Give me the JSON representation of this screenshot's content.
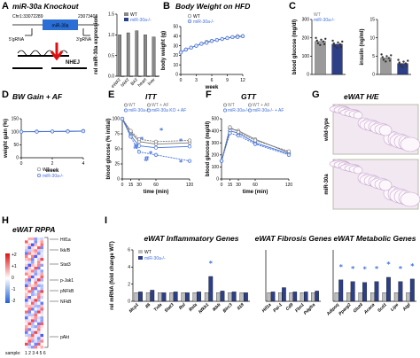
{
  "figure": {
    "panels": [
      "A",
      "B",
      "C",
      "D",
      "E",
      "F",
      "G",
      "H",
      "I"
    ],
    "colors": {
      "wt": "#888888",
      "ko": "#2a3f8c",
      "ko_line": "#3f6fe0",
      "star": "#3f6fe0",
      "red": "#e01010",
      "blue": "#2060d8"
    }
  },
  "panel_a": {
    "title": "miR-30a Knockout",
    "chr": "Chr1:33072289",
    "chr_end": "23073408",
    "gene": "miR-30a",
    "grna_left": "5'gRNA",
    "grna_right": "3'gRNA",
    "nhej": "NHEJ"
  },
  "panel_g": {
    "title": "eWAT H/E",
    "row1": "wild-type",
    "row2": "miR-30a",
    "row2_sup": "-/-"
  },
  "panel_h": {
    "title": "eWAT RPPA",
    "scale": [
      "+2",
      "+1",
      "0",
      "-1",
      "-2"
    ],
    "labels": [
      "Hif1a",
      "Ikk/B",
      "Stat3",
      "p-Jak1",
      "pNFkB",
      "NFkB",
      "pAkt"
    ],
    "sample_label": "sample:",
    "samples": "1 2 3 4 5 6"
  },
  "chart_data": [
    {
      "panel": "A-inset",
      "type": "bar",
      "ylabel": "rel miR-30a expression",
      "ylim": [
        0,
        1.5
      ],
      "yticks": [
        "0.0",
        "0.5",
        "1.0",
        "1.5"
      ],
      "categories": [
        "eWAT",
        "iWAT",
        "BAT",
        "heart",
        "liver"
      ],
      "series": [
        {
          "name": "WT",
          "values": [
            1.0,
            1.05,
            1.1,
            1.0,
            0.95
          ]
        },
        {
          "name": "miR-30a-/-",
          "values": [
            0,
            0,
            0,
            0,
            0
          ]
        }
      ]
    },
    {
      "panel": "B",
      "type": "line",
      "title": "Body Weight on HFD",
      "xlabel": "week",
      "ylabel": "body weight (g)",
      "xlim": [
        0,
        12
      ],
      "ylim": [
        0,
        50
      ],
      "xticks": [
        "0",
        "3",
        "6",
        "9",
        "12"
      ],
      "yticks": [
        "0",
        "10",
        "20",
        "30",
        "40",
        "50"
      ],
      "x": [
        0,
        1,
        2,
        3,
        4,
        5,
        6,
        7,
        8,
        9,
        10,
        11,
        12
      ],
      "series": [
        {
          "name": "WT",
          "values": [
            23,
            26,
            28,
            30,
            32,
            34,
            35,
            36,
            37,
            38,
            39,
            40,
            40
          ]
        },
        {
          "name": "miR-30a-/-",
          "values": [
            23,
            26,
            28,
            30,
            32,
            33,
            35,
            36,
            37,
            38,
            39,
            39,
            40
          ]
        }
      ]
    },
    {
      "panel": "C-left",
      "type": "bar",
      "ylabel": "blood glucose (mg/dl)",
      "ylim": [
        0,
        300
      ],
      "yticks": [
        "0",
        "100",
        "200",
        "300"
      ],
      "categories": [
        "WT",
        "miR-30a-/-"
      ],
      "values": [
        180,
        165
      ]
    },
    {
      "panel": "C-right",
      "type": "bar",
      "ylabel": "insulin (ng/ml)",
      "ylim": [
        0,
        15
      ],
      "yticks": [
        "0",
        "5",
        "10",
        "15"
      ],
      "categories": [
        "WT",
        "miR-30a-/-"
      ],
      "values": [
        4.5,
        3.0
      ]
    },
    {
      "panel": "D",
      "type": "scatter",
      "title": "BW Gain + AF",
      "xlabel": "week",
      "ylabel": "weight gain (%)",
      "xlim": [
        0,
        4
      ],
      "ylim": [
        0,
        150
      ],
      "xticks": [
        "0",
        "2",
        "4"
      ],
      "yticks": [
        "0",
        "50",
        "100",
        "150"
      ],
      "x": [
        0,
        1,
        2,
        3,
        4
      ],
      "series": [
        {
          "name": "WT",
          "values": [
            100,
            101,
            101,
            102,
            103
          ]
        },
        {
          "name": "miR-30a-/-",
          "values": [
            100,
            100,
            101,
            101,
            102
          ]
        }
      ]
    },
    {
      "panel": "E",
      "type": "line",
      "title": "ITT",
      "xlabel": "time (min)",
      "ylabel": "blood glucose (% initial)",
      "xlim": [
        0,
        120
      ],
      "ylim": [
        0,
        100
      ],
      "xticks": [
        "0",
        "15",
        "30",
        "60",
        "120"
      ],
      "yticks": [
        "0",
        "25",
        "50",
        "75",
        "100"
      ],
      "x": [
        0,
        15,
        30,
        60,
        120
      ],
      "series": [
        {
          "name": "WT",
          "values": [
            100,
            78,
            62,
            58,
            60
          ]
        },
        {
          "name": "miR-30a-/-",
          "values": [
            100,
            72,
            55,
            52,
            54
          ]
        },
        {
          "name": "WT + AF",
          "values": [
            100,
            80,
            66,
            62,
            64
          ]
        },
        {
          "name": "miR-30a KO + AF",
          "values": [
            100,
            70,
            45,
            40,
            30
          ]
        }
      ]
    },
    {
      "panel": "F",
      "type": "line",
      "title": "GTT",
      "xlabel": "time (min)",
      "ylabel": "blood glucose (mg/dl)",
      "xlim": [
        0,
        120
      ],
      "ylim": [
        0,
        500
      ],
      "xticks": [
        "0",
        "15",
        "30",
        "60",
        "120"
      ],
      "yticks": [
        "0",
        "100",
        "200",
        "300",
        "400",
        "500"
      ],
      "x": [
        0,
        15,
        30,
        60,
        120
      ],
      "series": [
        {
          "name": "WT",
          "values": [
            150,
            420,
            400,
            330,
            220
          ]
        },
        {
          "name": "miR-30a-/-",
          "values": [
            150,
            400,
            380,
            300,
            210
          ]
        },
        {
          "name": "WT + AF",
          "values": [
            150,
            430,
            390,
            320,
            230
          ]
        },
        {
          "name": "miR-30a-/- + AF",
          "values": [
            150,
            380,
            360,
            290,
            200
          ]
        }
      ]
    },
    {
      "panel": "I-inflammatory",
      "type": "bar",
      "title": "eWAT Inflammatory Genes",
      "ylabel": "rel mRNA (fold change WT)",
      "ylim": [
        0,
        6
      ],
      "yticks": [
        "0",
        "2",
        "4",
        "6"
      ],
      "categories": [
        "Mcp1",
        "Il6",
        "Tnfa",
        "Stat3",
        "Rel",
        "Rela",
        "Nfkb1",
        "Ikbb",
        "Birc3",
        "Il18"
      ],
      "series": [
        {
          "name": "WT",
          "values": [
            1,
            1,
            1,
            1,
            1,
            1,
            1,
            1,
            1,
            1
          ]
        },
        {
          "name": "miR-30a-/-",
          "values": [
            1.1,
            1.3,
            1.0,
            1.1,
            1.0,
            1.1,
            2.9,
            1.2,
            1.1,
            1.0
          ]
        }
      ]
    },
    {
      "panel": "I-fibrosis",
      "type": "bar",
      "title": "eWAT Fibrosis Genes",
      "ylim": [
        0,
        6
      ],
      "categories": [
        "Hif1a",
        "Pai-1",
        "Cd9",
        "Fbn1",
        "Pdgfra"
      ],
      "series": [
        {
          "name": "WT",
          "values": [
            1,
            1,
            1,
            1,
            1
          ]
        },
        {
          "name": "miR-30a-/-",
          "values": [
            1.1,
            1.6,
            1.1,
            1.1,
            1.2
          ]
        }
      ]
    },
    {
      "panel": "I-metabolic",
      "type": "bar",
      "title": "eWAT Metabolic Genes",
      "ylim": [
        0,
        6
      ],
      "categories": [
        "Adipoq",
        "Pparg2",
        "Glut4",
        "Acaca",
        "Scd1",
        "Lipe",
        "Atgl"
      ],
      "series": [
        {
          "name": "WT",
          "values": [
            1,
            1,
            1,
            1,
            1,
            1,
            1
          ]
        },
        {
          "name": "miR-30a-/-",
          "values": [
            2.5,
            2.3,
            2.2,
            2.3,
            2.8,
            2.3,
            2.6
          ]
        }
      ]
    }
  ],
  "legends": {
    "wt": "WT",
    "ko": "miR-30a-/-",
    "wt_af": "WT + AF",
    "ko_af": "miR-30a-/- + AF",
    "ko_ko_af": "miR-30a KO + AF"
  },
  "stars": {
    "star": "*",
    "hash": "#"
  }
}
